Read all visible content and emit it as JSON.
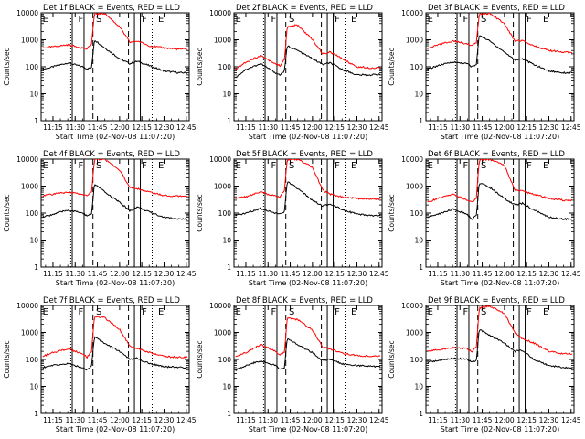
{
  "panel_titles": [
    "Det 1f  BLACK = Events, RED = LLD",
    "Det 2f  BLACK = Events, RED = LLD",
    "Det 3f  BLACK = Events, RED = LLD",
    "Det 4f  BLACK = Events, RED = LLD",
    "Det 5f  BLACK = Events, RED = LLD",
    "Det 6f  BLACK = Events, RED = LLD",
    "Det 7f  BLACK = Events, RED = LLD",
    "Det 8f  BLACK = Events, RED = LLD",
    "Det 9f  BLACK = Events, RED = LLD"
  ],
  "xlabel": "Start Time (02-Nov-08 11:07:20)",
  "ylabel": "Counts/sec",
  "xticks": [
    "11:15",
    "11:30",
    "11:45",
    "12:00",
    "12:15",
    "12:30",
    "12:45"
  ],
  "yticks": [
    "1",
    "10",
    "100",
    "1000",
    "10000"
  ],
  "region_markers": [
    "E",
    "F",
    "S",
    "F",
    "E"
  ],
  "colors": {
    "events": "#000000",
    "lld": "#ff0000"
  },
  "chart_data": {
    "type": "line",
    "y_scale": "log",
    "ylim": [
      1,
      10000
    ],
    "xlim": [
      "11:07",
      "12:47"
    ],
    "grid": false,
    "series_names": [
      "Events",
      "LLD"
    ],
    "markers": {
      "solid": [
        "11:28",
        "11:36",
        "12:10",
        "12:14"
      ],
      "dashed": [
        "11:42",
        "12:06"
      ],
      "dotted": [
        "11:27",
        "12:22"
      ]
    },
    "panels": [
      {
        "x": [
          "11:08",
          "11:15",
          "11:25",
          "11:35",
          "11:38",
          "11:41",
          "11:43",
          "11:50",
          "12:00",
          "12:07",
          "12:12",
          "12:20",
          "12:30",
          "12:40",
          "12:46"
        ],
        "events": [
          80,
          100,
          140,
          100,
          85,
          90,
          1000,
          500,
          200,
          130,
          160,
          110,
          70,
          60,
          60
        ],
        "lld": [
          500,
          550,
          650,
          500,
          450,
          700,
          9000,
          9500,
          3000,
          800,
          900,
          600,
          500,
          450,
          450
        ]
      },
      {
        "x": [
          "11:08",
          "11:15",
          "11:25",
          "11:35",
          "11:38",
          "11:41",
          "11:43",
          "11:50",
          "12:00",
          "12:07",
          "12:12",
          "12:20",
          "12:30",
          "12:40",
          "12:46"
        ],
        "events": [
          40,
          80,
          130,
          60,
          50,
          70,
          600,
          400,
          200,
          120,
          140,
          80,
          50,
          50,
          55
        ],
        "lld": [
          80,
          150,
          260,
          130,
          110,
          180,
          3000,
          3500,
          1000,
          300,
          350,
          200,
          100,
          90,
          95
        ]
      },
      {
        "x": [
          "11:08",
          "11:15",
          "11:25",
          "11:35",
          "11:38",
          "11:41",
          "11:43",
          "11:50",
          "12:00",
          "12:07",
          "12:12",
          "12:20",
          "12:30",
          "12:40",
          "12:46"
        ],
        "events": [
          80,
          110,
          150,
          130,
          100,
          120,
          1500,
          900,
          350,
          180,
          200,
          120,
          70,
          60,
          60
        ],
        "lld": [
          450,
          650,
          900,
          700,
          600,
          800,
          9000,
          9500,
          4000,
          900,
          950,
          600,
          400,
          350,
          330
        ]
      },
      {
        "x": [
          "11:08",
          "11:15",
          "11:25",
          "11:35",
          "11:38",
          "11:41",
          "11:43",
          "11:50",
          "12:00",
          "12:07",
          "12:12",
          "12:20",
          "12:30",
          "12:40",
          "12:46"
        ],
        "events": [
          70,
          90,
          130,
          100,
          80,
          90,
          1200,
          600,
          250,
          120,
          170,
          110,
          70,
          60,
          60
        ],
        "lld": [
          450,
          500,
          600,
          500,
          450,
          600,
          9500,
          9800,
          4000,
          900,
          800,
          600,
          450,
          420,
          420
        ]
      },
      {
        "x": [
          "11:08",
          "11:15",
          "11:25",
          "11:35",
          "11:38",
          "11:41",
          "11:43",
          "11:50",
          "12:00",
          "12:07",
          "12:12",
          "12:20",
          "12:30",
          "12:40",
          "12:46"
        ],
        "events": [
          80,
          100,
          150,
          100,
          90,
          110,
          1500,
          800,
          300,
          180,
          220,
          140,
          90,
          80,
          80
        ],
        "lld": [
          350,
          400,
          600,
          420,
          380,
          700,
          9500,
          9800,
          5000,
          700,
          500,
          400,
          350,
          330,
          330
        ]
      },
      {
        "x": [
          "11:08",
          "11:15",
          "11:25",
          "11:35",
          "11:38",
          "11:41",
          "11:43",
          "11:50",
          "12:00",
          "12:07",
          "12:12",
          "12:20",
          "12:30",
          "12:40",
          "12:46"
        ],
        "events": [
          70,
          90,
          140,
          90,
          60,
          80,
          1300,
          900,
          350,
          200,
          230,
          130,
          70,
          60,
          60
        ],
        "lld": [
          250,
          350,
          500,
          300,
          250,
          350,
          9000,
          9800,
          6000,
          700,
          650,
          500,
          350,
          300,
          300
        ]
      },
      {
        "x": [
          "11:08",
          "11:15",
          "11:25",
          "11:35",
          "11:38",
          "11:41",
          "11:43",
          "11:50",
          "12:00",
          "12:07",
          "12:12",
          "12:20",
          "12:30",
          "12:40",
          "12:46"
        ],
        "events": [
          50,
          60,
          70,
          50,
          40,
          55,
          700,
          400,
          200,
          100,
          110,
          70,
          55,
          50,
          50
        ],
        "lld": [
          130,
          180,
          250,
          160,
          120,
          200,
          4000,
          3500,
          1300,
          300,
          250,
          180,
          130,
          120,
          120
        ]
      },
      {
        "x": [
          "11:08",
          "11:15",
          "11:25",
          "11:35",
          "11:38",
          "11:41",
          "11:43",
          "11:50",
          "12:00",
          "12:07",
          "12:12",
          "12:20",
          "12:30",
          "12:40",
          "12:46"
        ],
        "events": [
          40,
          60,
          90,
          60,
          45,
          50,
          600,
          350,
          180,
          90,
          100,
          70,
          60,
          55,
          55
        ],
        "lld": [
          120,
          180,
          350,
          200,
          150,
          180,
          3500,
          3000,
          1200,
          280,
          250,
          170,
          140,
          130,
          130
        ]
      },
      {
        "x": [
          "11:08",
          "11:15",
          "11:25",
          "11:35",
          "11:38",
          "11:41",
          "11:43",
          "11:50",
          "12:00",
          "12:07",
          "12:12",
          "12:20",
          "12:30",
          "12:40",
          "12:46"
        ],
        "events": [
          80,
          90,
          110,
          100,
          80,
          90,
          1300,
          800,
          400,
          200,
          220,
          100,
          60,
          50,
          50
        ],
        "lld": [
          200,
          230,
          280,
          250,
          200,
          300,
          8000,
          9500,
          5000,
          1000,
          600,
          400,
          200,
          160,
          160
        ]
      }
    ]
  }
}
